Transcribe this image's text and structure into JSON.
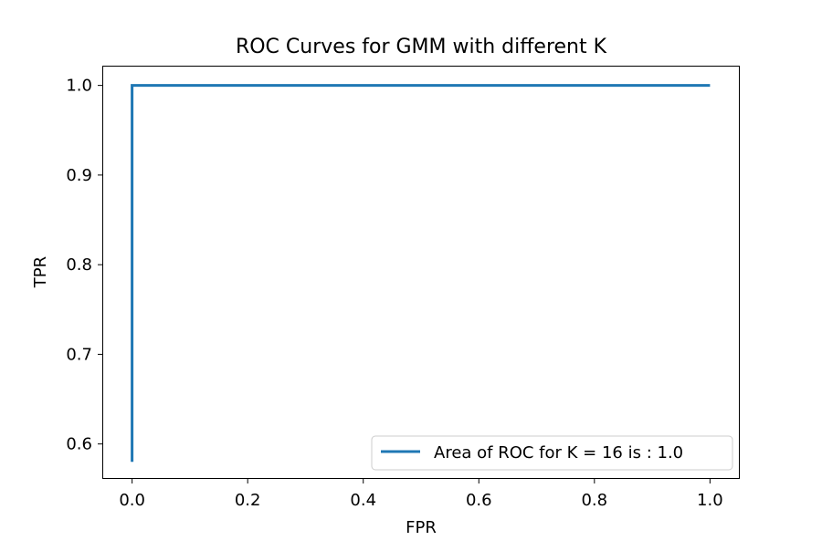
{
  "chart_data": {
    "type": "line",
    "title": "ROC Curves for GMM with different K",
    "xlabel": "FPR",
    "ylabel": "TPR",
    "xlim": [
      -0.05,
      1.05
    ],
    "ylim": [
      0.562,
      1.021
    ],
    "xticks": [
      0.0,
      0.2,
      0.4,
      0.6,
      0.8,
      1.0
    ],
    "xtick_labels": [
      "0.0",
      "0.2",
      "0.4",
      "0.6",
      "0.8",
      "1.0"
    ],
    "yticks": [
      0.6,
      0.7,
      0.8,
      0.9,
      1.0
    ],
    "ytick_labels": [
      "0.6",
      "0.7",
      "0.8",
      "0.9",
      "1.0"
    ],
    "grid": false,
    "legend_position": "lower-right",
    "series": [
      {
        "name": "Area of ROC for K = 16 is : 1.0",
        "color": "#1f77b4",
        "x": [
          0.0,
          0.0,
          1.0
        ],
        "y": [
          0.58,
          1.0,
          1.0
        ]
      }
    ]
  }
}
